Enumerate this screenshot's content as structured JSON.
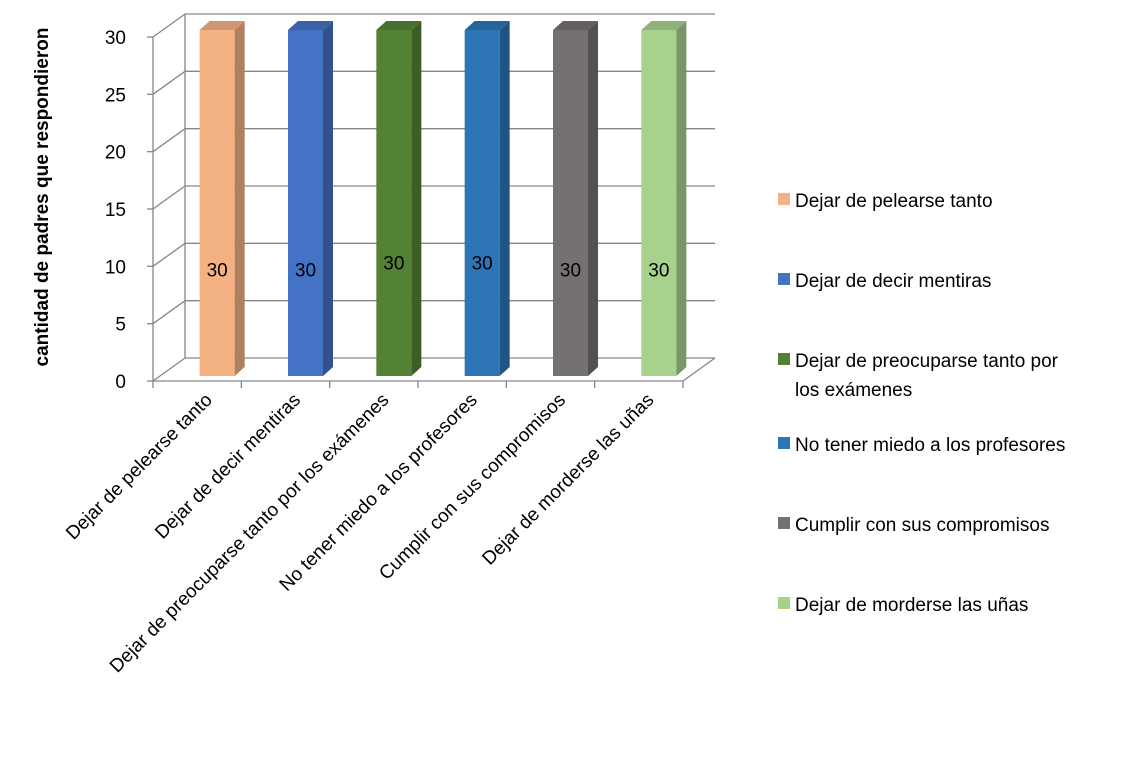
{
  "chart_data": {
    "type": "bar",
    "title": "",
    "xlabel": "",
    "ylabel": "cantidad de padres que respondieron",
    "ylim": [
      0,
      30
    ],
    "yticks": [
      0,
      5,
      10,
      15,
      20,
      25,
      30
    ],
    "grid": true,
    "legend_position": "right",
    "categories": [
      "Dejar de pelearse tanto",
      "Dejar de decir mentiras",
      "Dejar de preocuparse tanto por los  exámenes",
      "No tener miedo a los profesores",
      "Cumplir con sus compromisos",
      "Dejar de morderse las  uñas"
    ],
    "values": [
      30,
      30,
      30,
      30,
      30,
      30
    ],
    "data_labels": [
      "30",
      "30",
      "30",
      "30",
      "30",
      "30"
    ],
    "colors": [
      "#F4B183",
      "#4472C4",
      "#548235",
      "#2E75B6",
      "#767171",
      "#A9D18E"
    ],
    "legend": [
      {
        "lines": [
          "Dejar de pelearse tanto"
        ]
      },
      {
        "lines": [
          "Dejar de decir mentiras"
        ]
      },
      {
        "lines": [
          "Dejar de preocuparse tanto por",
          "los  exámenes"
        ]
      },
      {
        "lines": [
          "No tener miedo a los profesores"
        ]
      },
      {
        "lines": [
          "Cumplir con sus compromisos"
        ]
      },
      {
        "lines": [
          "Dejar de morderse las  uñas"
        ]
      }
    ]
  }
}
